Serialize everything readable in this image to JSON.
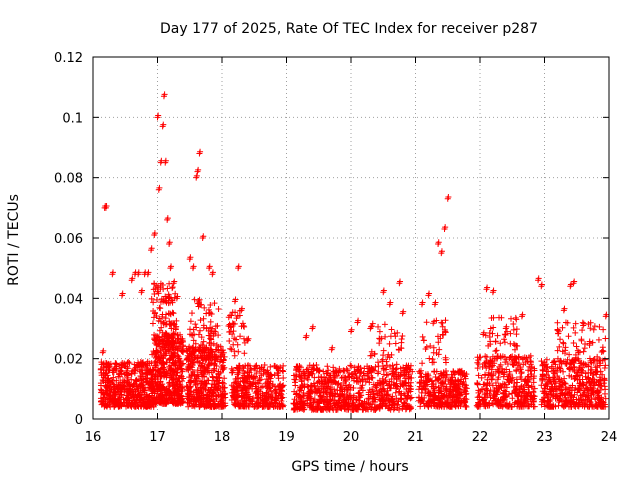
{
  "chart_data": {
    "type": "scatter",
    "title": "Day 177 of 2025, Rate Of TEC Index for receiver p287",
    "xlabel": "GPS time / hours",
    "ylabel": "ROTI / TECUs",
    "xlim": [
      16,
      24
    ],
    "ylim": [
      0,
      0.12
    ],
    "x_ticks": [
      16,
      17,
      18,
      19,
      20,
      21,
      22,
      23,
      24
    ],
    "x_tick_labels": [
      "16",
      "17",
      "18",
      "19",
      "20",
      "21",
      "22",
      "23",
      "24"
    ],
    "y_ticks": [
      0,
      0.02,
      0.04,
      0.06,
      0.08,
      0.1,
      0.12
    ],
    "y_tick_labels": [
      "0",
      "0.02",
      "0.04",
      "0.06",
      "0.08",
      "0.1",
      "0.12"
    ],
    "grid": true,
    "marker": "+",
    "series": [
      {
        "name": "ROTI",
        "color": "#ff0000",
        "note_density": "dense band from ~0.004 to ~0.02 across all hours, with spikes",
        "x": [
          16.15,
          16.18,
          16.2,
          16.3,
          16.45,
          16.6,
          16.65,
          16.7,
          16.75,
          16.8,
          16.85,
          16.9,
          16.95,
          17.0,
          17.02,
          17.05,
          17.08,
          17.1,
          17.12,
          17.15,
          17.18,
          17.2,
          17.25,
          17.3,
          17.5,
          17.55,
          17.6,
          17.62,
          17.65,
          17.7,
          17.8,
          17.85,
          18.2,
          18.25,
          18.3,
          18.4,
          19.3,
          19.4,
          19.7,
          20.0,
          20.1,
          20.3,
          20.5,
          20.6,
          20.75,
          20.8,
          21.1,
          21.2,
          21.3,
          21.35,
          21.4,
          21.45,
          21.5,
          22.05,
          22.1,
          22.2,
          22.4,
          22.65,
          22.9,
          22.95,
          23.3,
          23.4,
          23.45,
          23.6,
          23.95
        ],
        "y": [
          0.022,
          0.07,
          0.07,
          0.048,
          0.041,
          0.046,
          0.048,
          0.048,
          0.042,
          0.048,
          0.048,
          0.056,
          0.061,
          0.1,
          0.076,
          0.085,
          0.097,
          0.107,
          0.085,
          0.066,
          0.058,
          0.05,
          0.045,
          0.04,
          0.053,
          0.05,
          0.08,
          0.082,
          0.088,
          0.06,
          0.05,
          0.048,
          0.039,
          0.05,
          0.036,
          0.026,
          0.027,
          0.03,
          0.023,
          0.029,
          0.032,
          0.03,
          0.042,
          0.038,
          0.045,
          0.035,
          0.038,
          0.041,
          0.038,
          0.058,
          0.055,
          0.063,
          0.073,
          0.028,
          0.043,
          0.042,
          0.03,
          0.034,
          0.046,
          0.044,
          0.036,
          0.044,
          0.045,
          0.031,
          0.034
        ]
      }
    ]
  }
}
